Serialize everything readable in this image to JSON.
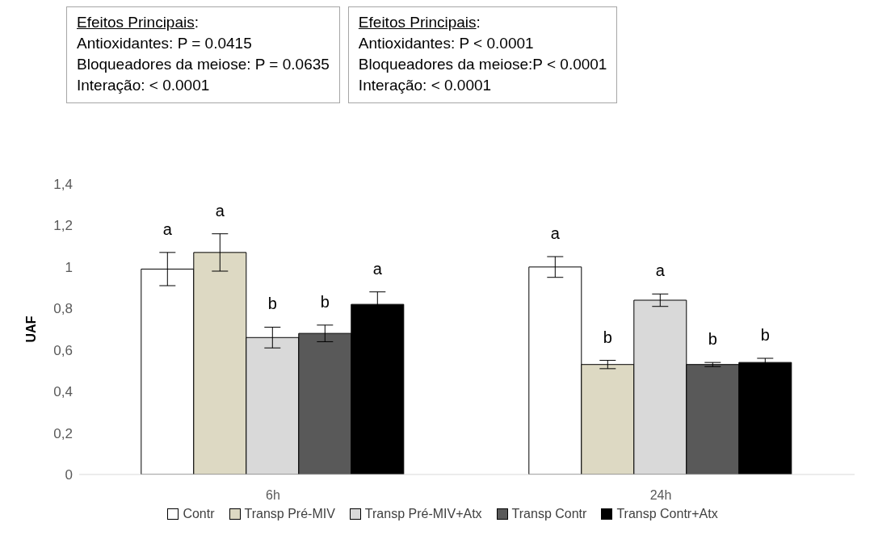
{
  "chart_data": {
    "type": "bar",
    "ylabel": "UAF",
    "categories": [
      "6h",
      "24h"
    ],
    "series": [
      {
        "name": "Contr",
        "color": "#ffffff",
        "values": [
          0.99,
          1.0
        ],
        "errors": [
          0.08,
          0.05
        ],
        "value_labels": [
          "a",
          "a"
        ]
      },
      {
        "name": "Transp Pré-MIV",
        "color": "#ddd9c3",
        "values": [
          1.07,
          0.53
        ],
        "errors": [
          0.09,
          0.02
        ],
        "value_labels": [
          "a",
          "b"
        ]
      },
      {
        "name": "Transp Pré-MIV+Atx",
        "color": "#d9d9d9",
        "values": [
          0.66,
          0.84
        ],
        "errors": [
          0.05,
          0.03
        ],
        "value_labels": [
          "b",
          "a"
        ]
      },
      {
        "name": "Transp Contr",
        "color": "#595959",
        "values": [
          0.68,
          0.53
        ],
        "errors": [
          0.04,
          0.01
        ],
        "value_labels": [
          "b",
          "b"
        ]
      },
      {
        "name": "Transp Contr+Atx",
        "color": "#000000",
        "values": [
          0.82,
          0.54
        ],
        "errors": [
          0.06,
          0.02
        ],
        "value_labels": [
          "a",
          "b"
        ]
      }
    ],
    "ylim": [
      0,
      1.4
    ],
    "yticks": [
      0,
      {
        "value": 0.2,
        "label": "0,2"
      },
      {
        "value": 0.4,
        "label": "0,4"
      },
      {
        "value": 0.6,
        "label": "0,6"
      },
      {
        "value": 0.8,
        "label": "0,8"
      },
      {
        "value": 1,
        "label": "1"
      },
      {
        "value": 1.2,
        "label": "1,2"
      },
      {
        "value": 1.4,
        "label": "1,4"
      }
    ],
    "grid": false,
    "legend": "bottom",
    "annotations": [
      "Efeitos Principais:\nAntioxidantes: P = 0.0415\nBloqueadores da meiose: P = 0.0635\nInteração: < 0.0001",
      "Efeitos Principais:\nAntioxidantes: P < 0.0001\nBloqueadores da meiose:P < 0.0001\nInteração: < 0.0001"
    ]
  }
}
